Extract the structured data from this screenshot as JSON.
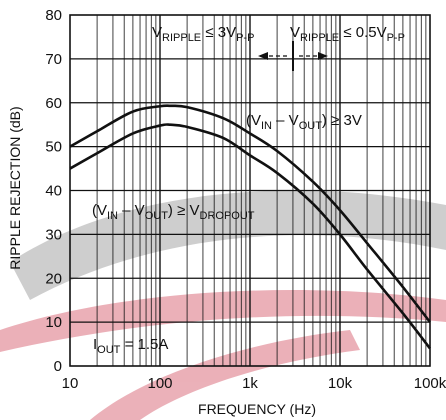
{
  "chart_data": {
    "type": "line",
    "title": "",
    "xlabel": "FREQUENCY (Hz)",
    "ylabel": "RIPPLE REJECTION (dB)",
    "xscale": "log",
    "xlim": [
      10,
      100000
    ],
    "ylim": [
      0,
      80
    ],
    "grid": true,
    "x_ticks": [
      10,
      100,
      1000,
      10000,
      100000
    ],
    "x_tick_labels": [
      "10",
      "100",
      "1k",
      "10k",
      "100k"
    ],
    "y_ticks": [
      0,
      10,
      20,
      30,
      40,
      50,
      60,
      70,
      80
    ],
    "y_tick_labels": [
      "0",
      "10",
      "20",
      "30",
      "40",
      "50",
      "60",
      "70",
      "80"
    ],
    "series": [
      {
        "x": [
          10,
          20,
          50,
          100,
          130,
          200,
          500,
          1000,
          2000,
          5000,
          10000,
          20000,
          50000,
          100000
        ],
        "y": [
          50,
          53.5,
          58,
          59.2,
          59.3,
          59,
          56.5,
          53,
          49,
          42,
          35.5,
          28,
          18,
          10
        ]
      },
      {
        "x": [
          10,
          20,
          50,
          100,
          130,
          200,
          500,
          1000,
          2000,
          5000,
          10000,
          20000,
          50000,
          100000
        ],
        "y": [
          45,
          48.5,
          53,
          54.8,
          55,
          54.5,
          52,
          48,
          44,
          37,
          30,
          22,
          12,
          4
        ]
      }
    ],
    "annotations": {
      "ripple_low": {
        "main": "V",
        "sub": "RIPPLE",
        "rel": " ≤ 3V",
        "sub2": "P-P"
      },
      "ripple_high": {
        "main": "V",
        "sub": "RIPPLE",
        "rel": " ≤ 0.5V",
        "sub2": "P-P"
      },
      "upper_curve": {
        "open": "(V",
        "sub1": "IN",
        "mid": " – V",
        "sub2": "OUT",
        "close": ") ≥ 3V"
      },
      "lower_curve": {
        "open": "(V",
        "sub1": "IN",
        "mid": " – V",
        "sub2": "OUT",
        "close": ") ≥ V",
        "sub3": "DROPOUT"
      },
      "current": {
        "main": "I",
        "sub": "OUT",
        "rest": " = 1.5A"
      }
    }
  }
}
